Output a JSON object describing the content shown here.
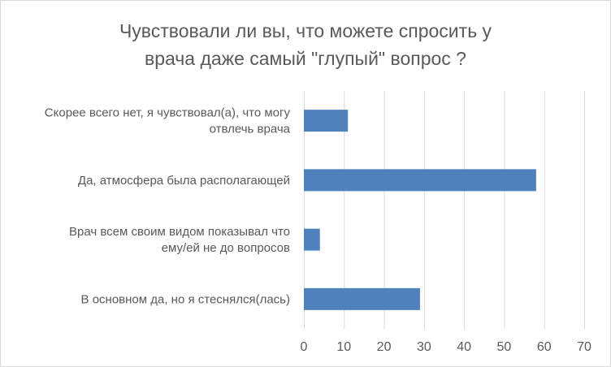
{
  "chart_data": {
    "type": "bar",
    "orientation": "horizontal",
    "title_lines": [
      "Чувствовали ли вы, что можете спросить у",
      "врача даже самый \"глупый\" вопрос ?"
    ],
    "categories": [
      [
        "Скорее всего нет, я чувствовал(а), что могу",
        "отвлечь врача"
      ],
      [
        "Да, атмосфера была располагающей"
      ],
      [
        "Врач всем своим видом показывал что",
        "ему/ей не до вопросов"
      ],
      [
        "В основном да, но я стеснялся(лась)"
      ]
    ],
    "values": [
      11,
      58,
      4,
      29
    ],
    "xlim": [
      0,
      70
    ],
    "x_ticks": [
      0,
      10,
      20,
      30,
      40,
      50,
      60,
      70
    ],
    "grid": "vertical",
    "legend": "none",
    "colors": {
      "bar": "#4f81bd",
      "grid": "#d9d9d9",
      "text": "#595959"
    }
  }
}
